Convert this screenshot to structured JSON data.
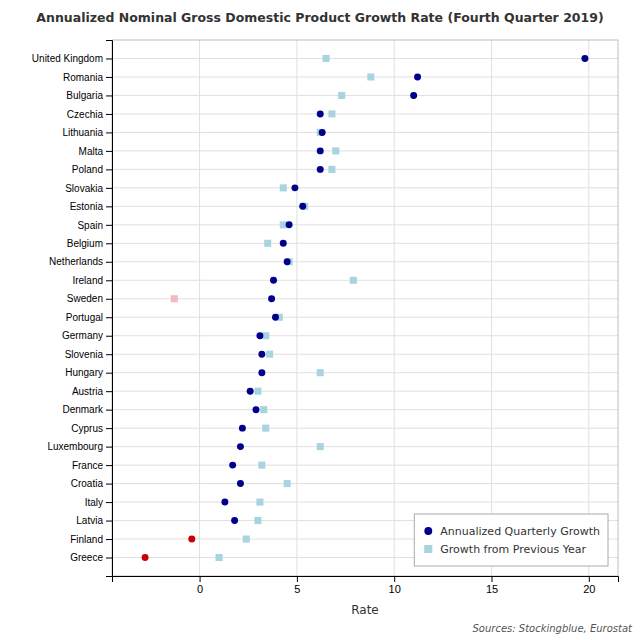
{
  "chart_data": {
    "type": "dot",
    "title": "Annualized Nominal Gross Domestic Product Growth Rate (Fourth Quarter 2019)",
    "xlabel": "Rate",
    "source": "Sources: Stockingblue, Eurostat",
    "orientation": "horizontal",
    "categories": [
      "United Kingdom",
      "Romania",
      "Bulgaria",
      "Czechia",
      "Lithuania",
      "Malta",
      "Poland",
      "Slovakia",
      "Estonia",
      "Spain",
      "Belgium",
      "Netherlands",
      "Ireland",
      "Sweden",
      "Portugal",
      "Germany",
      "Slovenia",
      "Hungary",
      "Austria",
      "Denmark",
      "Cyprus",
      "Luxembourg",
      "France",
      "Croatia",
      "Italy",
      "Latvia",
      "Finland",
      "Greece"
    ],
    "series": [
      {
        "name": "Annualized Quarterly Growth",
        "marker": "circle",
        "color": "#00008B",
        "colors": [
          "#00008B",
          "#00008B",
          "#00008B",
          "#00008B",
          "#00008B",
          "#00008B",
          "#00008B",
          "#00008B",
          "#00008B",
          "#00008B",
          "#00008B",
          "#00008B",
          "#00008B",
          "#00008B",
          "#00008B",
          "#00008B",
          "#00008B",
          "#00008B",
          "#00008B",
          "#00008B",
          "#00008B",
          "#00008B",
          "#00008B",
          "#00008B",
          "#00008B",
          "#00008B",
          "#CC0000",
          "#CC0000"
        ],
        "values": [
          19.8,
          11.2,
          11.0,
          6.2,
          6.3,
          6.2,
          6.2,
          4.9,
          5.3,
          4.6,
          4.3,
          4.5,
          3.8,
          3.7,
          3.9,
          3.1,
          3.2,
          3.2,
          2.6,
          2.9,
          2.2,
          2.1,
          1.7,
          2.1,
          1.3,
          1.8,
          -0.4,
          -2.8
        ]
      },
      {
        "name": "Growth from Previous Year",
        "marker": "square",
        "color": "#a8d4e0",
        "colors": [
          "#a8d4e0",
          "#a8d4e0",
          "#a8d4e0",
          "#a8d4e0",
          "#a8d4e0",
          "#a8d4e0",
          "#a8d4e0",
          "#a8d4e0",
          "#a8d4e0",
          "#a8d4e0",
          "#a8d4e0",
          "#a8d4e0",
          "#a8d4e0",
          "#f4b8c0",
          "#a8d4e0",
          "#a8d4e0",
          "#a8d4e0",
          "#a8d4e0",
          "#a8d4e0",
          "#a8d4e0",
          "#a8d4e0",
          "#a8d4e0",
          "#a8d4e0",
          "#a8d4e0",
          "#a8d4e0",
          "#a8d4e0",
          "#a8d4e0",
          "#a8d4e0"
        ],
        "values": [
          6.5,
          8.8,
          7.3,
          6.8,
          6.2,
          7.0,
          6.8,
          4.3,
          5.4,
          4.3,
          3.5,
          4.6,
          7.9,
          -1.3,
          4.1,
          3.4,
          3.6,
          6.2,
          3.0,
          3.3,
          3.4,
          6.2,
          3.2,
          4.5,
          3.1,
          3.0,
          2.4,
          1.0
        ]
      }
    ],
    "xlim": [
      -4.5,
      21.5
    ],
    "xticks": [
      0,
      5,
      10,
      15,
      20
    ],
    "grid": true,
    "legend": "lower right"
  }
}
